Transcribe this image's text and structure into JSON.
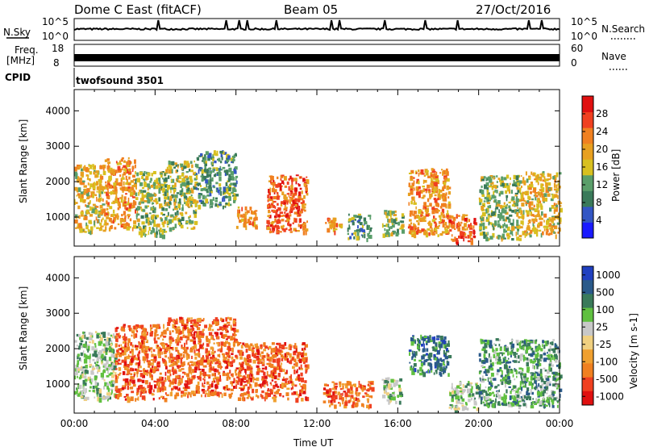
{
  "header": {
    "title": "Dome C East (fitACF)",
    "beam": "Beam 05",
    "date": "27/Oct/2016"
  },
  "sky_panel": {
    "left_label": "N.Sky",
    "left_top": "10^5",
    "left_bottom": "10^0",
    "right_label": "N.Search",
    "right_top": "10^5",
    "right_bottom": "10^0"
  },
  "freq_panel": {
    "left_label_1": "Freq.",
    "left_label_2": "[MHz]",
    "left_top": "18",
    "left_bottom": "8",
    "right_label": "Nave",
    "right_top": "60",
    "right_bottom": "0"
  },
  "cpid": {
    "label": "CPID",
    "value": "twofsound 3501"
  },
  "colors": {
    "power": [
      "#1a1aff",
      "#3356c4",
      "#3a7a5a",
      "#5a9e6a",
      "#d8c020",
      "#e8a020",
      "#f08020",
      "#f04020",
      "#e01010"
    ],
    "velocity": [
      "#e01010",
      "#f04020",
      "#f08020",
      "#f0a030",
      "#f0d080",
      "#c8c8c8",
      "#60c040",
      "#3a7a5a",
      "#2a5a8a",
      "#2040c0"
    ]
  },
  "chart_data": [
    {
      "type": "heatmap",
      "title": "Power",
      "xlabel": "",
      "ylabel": "Slant Range [km]",
      "xlim": [
        "00:00",
        "24:00"
      ],
      "ylim": [
        180,
        4600
      ],
      "yticks": [
        "1000",
        "2000",
        "3000",
        "4000"
      ],
      "colorbar": {
        "label": "Power [dB]",
        "ticks": [
          "4",
          "8",
          "12",
          "16",
          "20",
          "24",
          "28"
        ],
        "range": [
          0,
          32
        ]
      },
      "echo_regions": [
        {
          "t_start": 0.0,
          "t_end": 1.5,
          "r_min": 600,
          "r_max": 2500,
          "level": 20
        },
        {
          "t_start": 1.5,
          "t_end": 3.0,
          "r_min": 700,
          "r_max": 2700,
          "level": 24
        },
        {
          "t_start": 3.0,
          "t_end": 4.5,
          "r_min": 500,
          "r_max": 2300,
          "level": 16
        },
        {
          "t_start": 4.5,
          "t_end": 6.0,
          "r_min": 700,
          "r_max": 2600,
          "level": 16
        },
        {
          "t_start": 6.0,
          "t_end": 8.0,
          "r_min": 1300,
          "r_max": 2900,
          "level": 12
        },
        {
          "t_start": 8.0,
          "t_end": 9.0,
          "r_min": 700,
          "r_max": 1300,
          "level": 24
        },
        {
          "t_start": 9.5,
          "t_end": 11.5,
          "r_min": 600,
          "r_max": 2200,
          "level": 28
        },
        {
          "t_start": 12.3,
          "t_end": 13.2,
          "r_min": 600,
          "r_max": 1000,
          "level": 24
        },
        {
          "t_start": 13.5,
          "t_end": 14.7,
          "r_min": 400,
          "r_max": 1100,
          "level": 12
        },
        {
          "t_start": 15.2,
          "t_end": 16.2,
          "r_min": 500,
          "r_max": 1200,
          "level": 16
        },
        {
          "t_start": 16.5,
          "t_end": 18.5,
          "r_min": 500,
          "r_max": 2400,
          "level": 24
        },
        {
          "t_start": 18.5,
          "t_end": 19.8,
          "r_min": 300,
          "r_max": 1100,
          "level": 28
        },
        {
          "t_start": 20.0,
          "t_end": 22.0,
          "r_min": 400,
          "r_max": 2200,
          "level": 16
        },
        {
          "t_start": 22.0,
          "t_end": 24.0,
          "r_min": 500,
          "r_max": 2300,
          "level": 20
        }
      ]
    },
    {
      "type": "heatmap",
      "title": "Velocity",
      "xlabel": "Time UT",
      "ylabel": "Slant Range [km]",
      "xlim": [
        "00:00",
        "24:00"
      ],
      "ylim": [
        180,
        4600
      ],
      "xticks": [
        "00:00",
        "04:00",
        "08:00",
        "12:00",
        "16:00",
        "20:00",
        "00:00"
      ],
      "yticks": [
        "1000",
        "2000",
        "3000",
        "4000"
      ],
      "colorbar": {
        "label": "Velocity [m s-1]",
        "ticks": [
          "1000",
          "500",
          "100",
          "25",
          "-25",
          "-100",
          "-500",
          "-1000"
        ]
      },
      "echo_regions": [
        {
          "t_start": 0.0,
          "t_end": 2.0,
          "r_min": 600,
          "r_max": 2500,
          "velocity": 100
        },
        {
          "t_start": 2.0,
          "t_end": 4.5,
          "r_min": 600,
          "r_max": 2700,
          "velocity": -300
        },
        {
          "t_start": 4.5,
          "t_end": 8.0,
          "r_min": 700,
          "r_max": 2900,
          "velocity": -250
        },
        {
          "t_start": 8.0,
          "t_end": 11.5,
          "r_min": 600,
          "r_max": 2200,
          "velocity": -400
        },
        {
          "t_start": 12.3,
          "t_end": 14.7,
          "r_min": 400,
          "r_max": 1100,
          "velocity": -200
        },
        {
          "t_start": 15.2,
          "t_end": 16.2,
          "r_min": 500,
          "r_max": 1200,
          "velocity": 80
        },
        {
          "t_start": 16.5,
          "t_end": 18.5,
          "r_min": 1300,
          "r_max": 2400,
          "velocity": 600
        },
        {
          "t_start": 18.5,
          "t_end": 20.0,
          "r_min": 300,
          "r_max": 1100,
          "velocity": 50
        },
        {
          "t_start": 20.0,
          "t_end": 24.0,
          "r_min": 400,
          "r_max": 2300,
          "velocity": 200
        }
      ]
    }
  ]
}
